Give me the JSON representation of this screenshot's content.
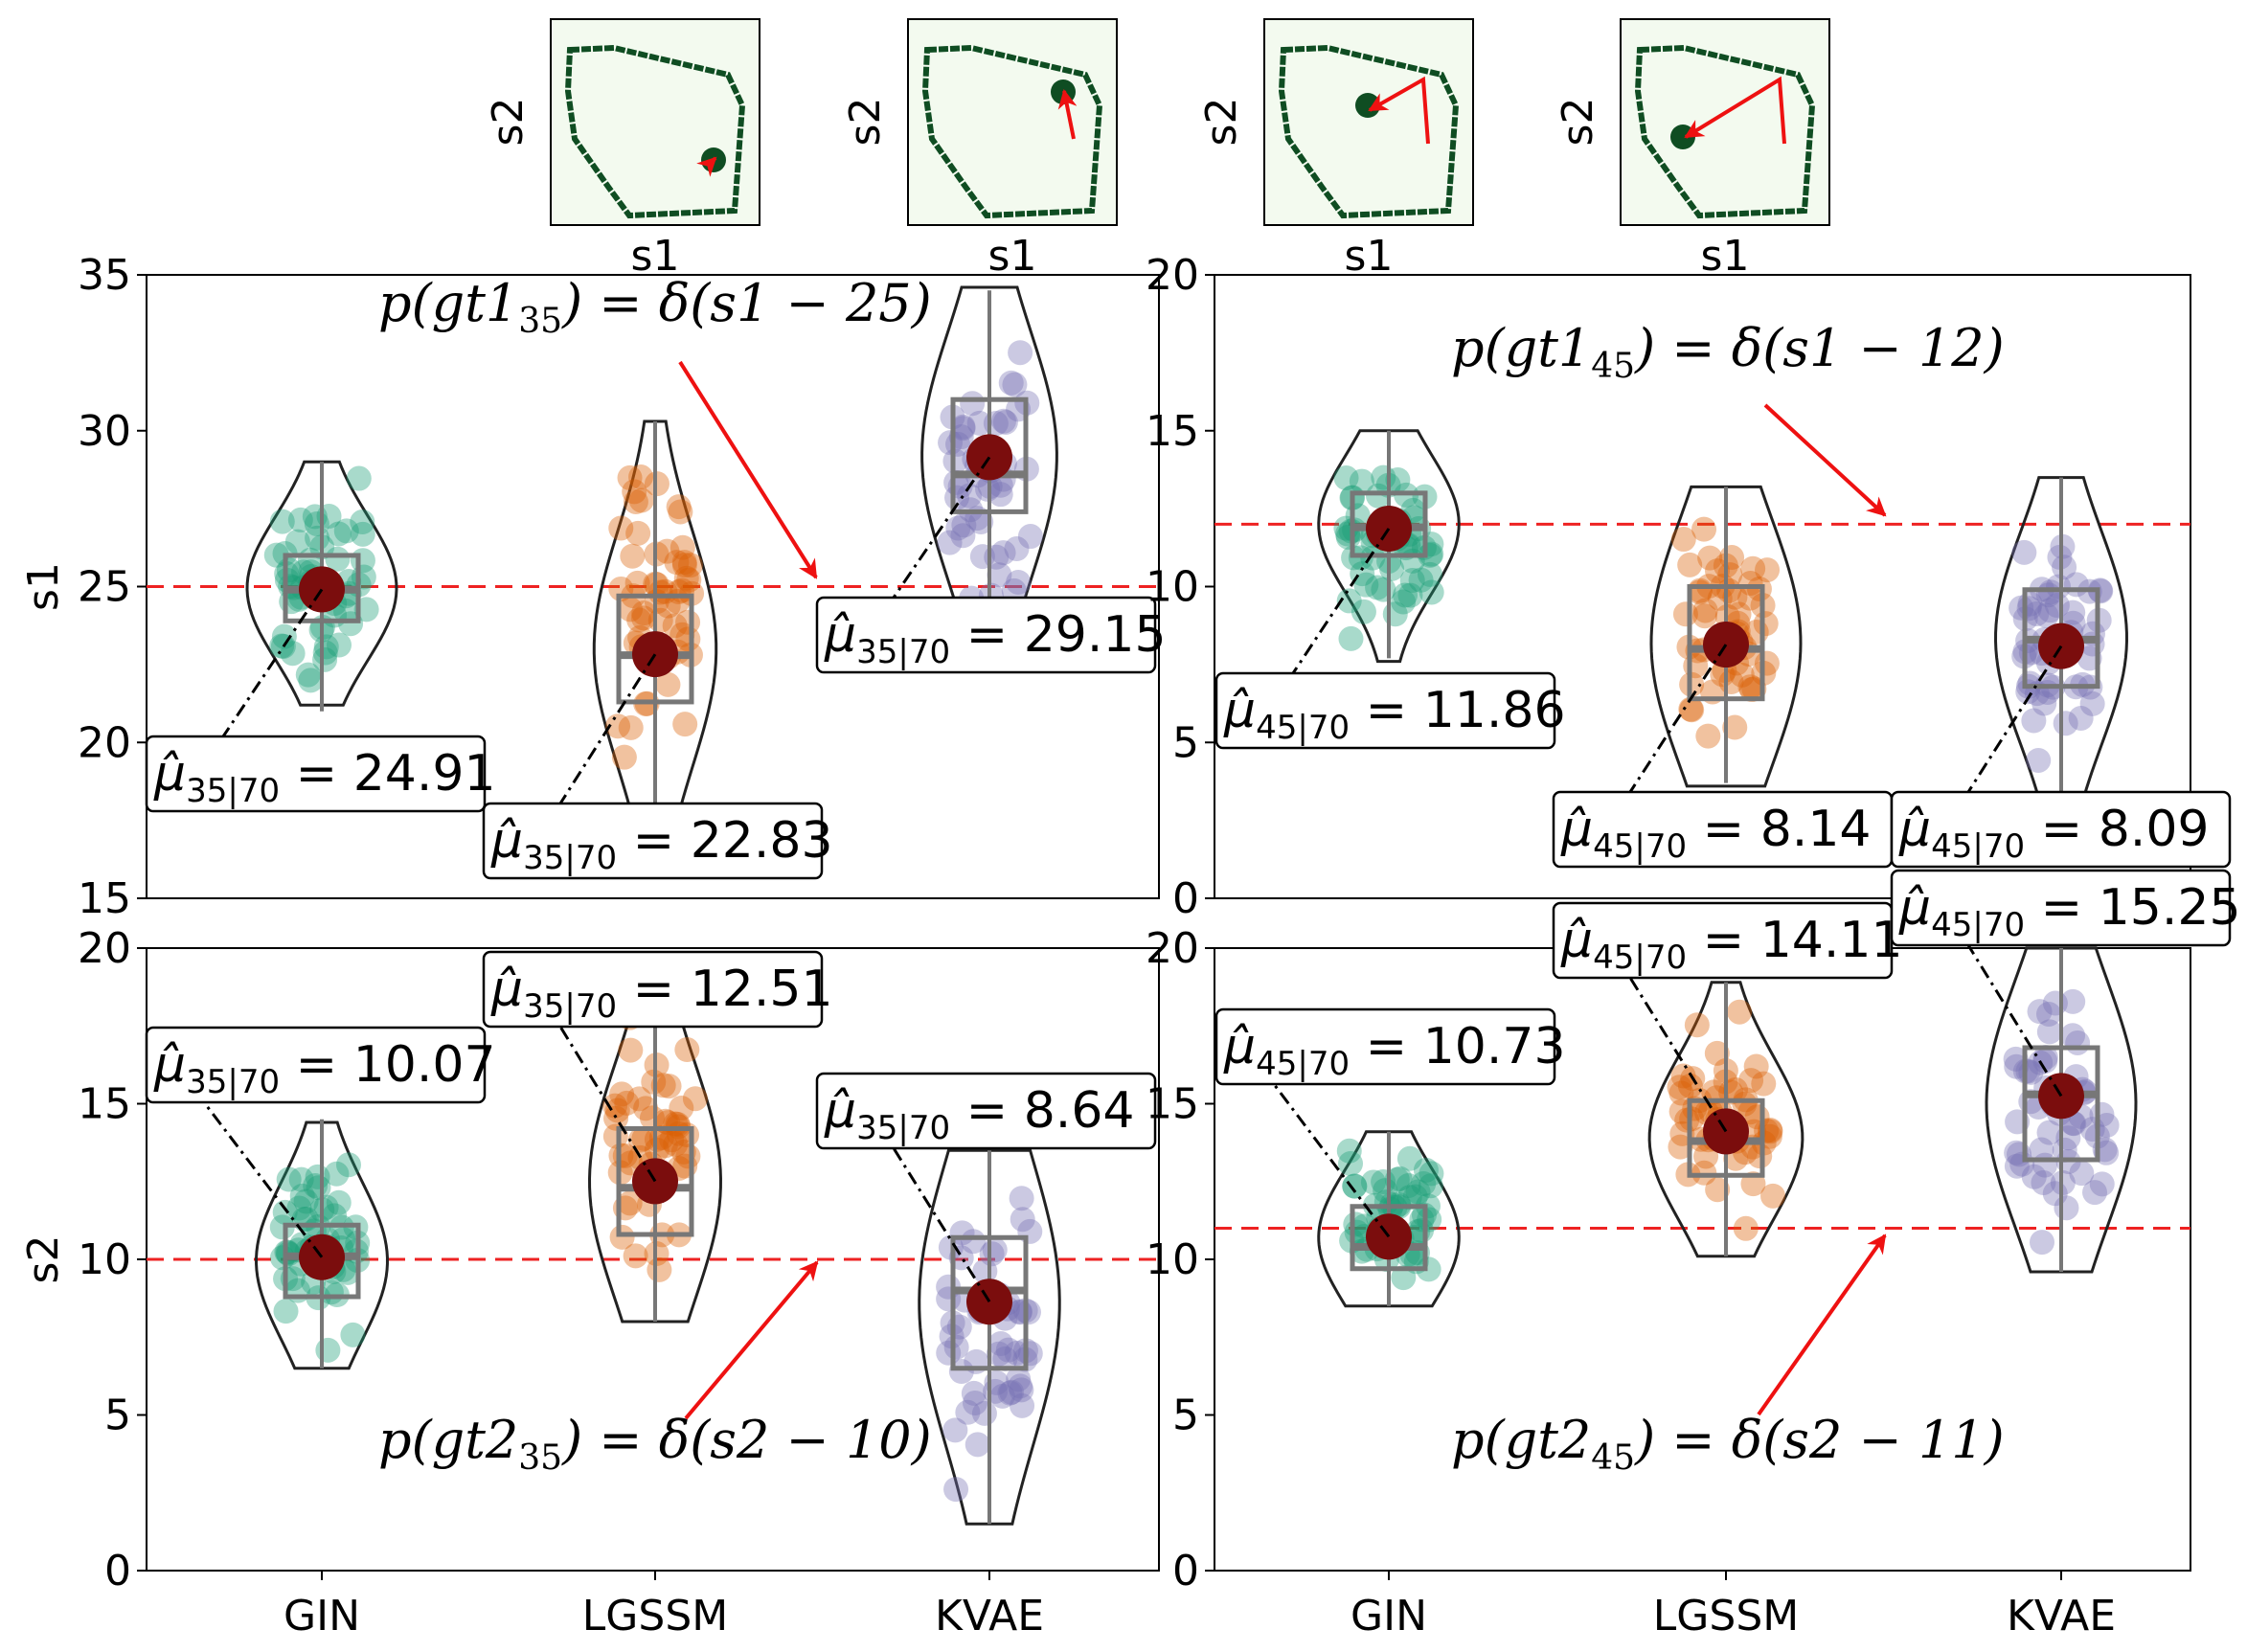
{
  "chart_data": {
    "type": "violin",
    "categories": [
      "GIN",
      "LGSSM",
      "KVAE"
    ],
    "colors": {
      "GIN": "#1b9e77",
      "LGSSM": "#d95f02",
      "KVAE": "#7570b3",
      "mean_marker": "#7b0d0d",
      "gt_line": "#e41a1c",
      "box": "#777777"
    },
    "thumbnails": {
      "xlabel": "s1",
      "ylabel": "s2",
      "items": [
        {
          "id": 1
        },
        {
          "id": 2
        },
        {
          "id": 3
        },
        {
          "id": 4
        }
      ]
    },
    "panels": [
      {
        "id": "s1-35",
        "ylabel": "s1",
        "ylim": [
          15,
          35
        ],
        "yticks": [
          15,
          20,
          25,
          30,
          35
        ],
        "gt": 25,
        "gt_text": {
          "pre": "p(gt1",
          "sub": "35",
          "post": ") = δ(s1 − 25)"
        },
        "means": [
          24.91,
          22.83,
          29.15
        ],
        "mean_labels": [
          {
            "sub": "35|70",
            "value": "24.91"
          },
          {
            "sub": "35|70",
            "value": "22.83"
          },
          {
            "sub": "35|70",
            "value": "29.15"
          }
        ],
        "stats": [
          {
            "min": 21,
            "q1": 23.9,
            "med": 24.9,
            "q3": 26,
            "max": 29,
            "vmin": 21.2,
            "vmax": 29.0
          },
          {
            "min": 18,
            "q1": 21.3,
            "med": 22.8,
            "q3": 24.7,
            "max": 30.3,
            "vmin": 17.9,
            "vmax": 30.3
          },
          {
            "min": 23.5,
            "q1": 27.4,
            "med": 28.6,
            "q3": 31.0,
            "max": 34.5,
            "vmin": 24.0,
            "vmax": 34.6
          }
        ]
      },
      {
        "id": "s1-45",
        "ylabel": "",
        "ylim": [
          0,
          20
        ],
        "yticks": [
          0,
          5,
          10,
          15,
          20
        ],
        "gt": 12,
        "gt_text": {
          "pre": "p(gt1",
          "sub": "45",
          "post": ") = δ(s1 − 12)"
        },
        "means": [
          11.86,
          8.14,
          8.09
        ],
        "mean_labels": [
          {
            "sub": "45|70",
            "value": "11.86"
          },
          {
            "sub": "45|70",
            "value": "8.14"
          },
          {
            "sub": "45|70",
            "value": "8.09"
          }
        ],
        "stats": [
          {
            "min": 7.7,
            "q1": 11.0,
            "med": 11.9,
            "q3": 13.0,
            "max": 15.0,
            "vmin": 7.6,
            "vmax": 15.0
          },
          {
            "min": 3.7,
            "q1": 6.4,
            "med": 8.0,
            "q3": 10.0,
            "max": 13.2,
            "vmin": 3.6,
            "vmax": 13.2
          },
          {
            "min": 3.0,
            "q1": 6.8,
            "med": 8.3,
            "q3": 9.9,
            "max": 13.5,
            "vmin": 3.0,
            "vmax": 13.5
          }
        ]
      },
      {
        "id": "s2-35",
        "ylabel": "s2",
        "ylim": [
          0,
          20
        ],
        "yticks": [
          0,
          5,
          10,
          15,
          20
        ],
        "gt": 10,
        "gt_text": {
          "pre": "p(gt2",
          "sub": "35",
          "post": ") = δ(s2 − 10)"
        },
        "means": [
          10.07,
          12.51,
          8.64
        ],
        "mean_labels": [
          {
            "sub": "35|70",
            "value": "10.07"
          },
          {
            "sub": "35|70",
            "value": "12.51"
          },
          {
            "sub": "35|70",
            "value": "8.64"
          }
        ],
        "stats": [
          {
            "min": 6.5,
            "q1": 8.8,
            "med": 10.1,
            "q3": 11.1,
            "max": 14.5,
            "vmin": 6.5,
            "vmax": 14.4
          },
          {
            "min": 8.0,
            "q1": 10.8,
            "med": 12.3,
            "q3": 14.2,
            "max": 19.5,
            "vmin": 8.0,
            "vmax": 19.5
          },
          {
            "min": 1.5,
            "q1": 6.5,
            "med": 9.0,
            "q3": 10.7,
            "max": 13.5,
            "vmin": 1.5,
            "vmax": 13.5
          }
        ]
      },
      {
        "id": "s2-45",
        "ylabel": "",
        "ylim": [
          0,
          20
        ],
        "yticks": [
          0,
          5,
          10,
          15,
          20
        ],
        "gt": 11,
        "gt_text": {
          "pre": "p(gt2",
          "sub": "45",
          "post": ") = δ(s2 − 11)"
        },
        "means": [
          10.73,
          14.11,
          15.25
        ],
        "mean_labels": [
          {
            "sub": "45|70",
            "value": "10.73"
          },
          {
            "sub": "45|70",
            "value": "14.11"
          },
          {
            "sub": "45|70",
            "value": "15.25"
          }
        ],
        "stats": [
          {
            "min": 8.5,
            "q1": 9.7,
            "med": 10.4,
            "q3": 11.7,
            "max": 14.1,
            "vmin": 8.5,
            "vmax": 14.1
          },
          {
            "min": 10.1,
            "q1": 12.7,
            "med": 13.8,
            "q3": 15.1,
            "max": 18.9,
            "vmin": 10.1,
            "vmax": 18.9
          },
          {
            "min": 9.6,
            "q1": 13.2,
            "med": 15.3,
            "q3": 16.8,
            "max": 20.0,
            "vmin": 9.6,
            "vmax": 20.0
          }
        ]
      }
    ]
  }
}
